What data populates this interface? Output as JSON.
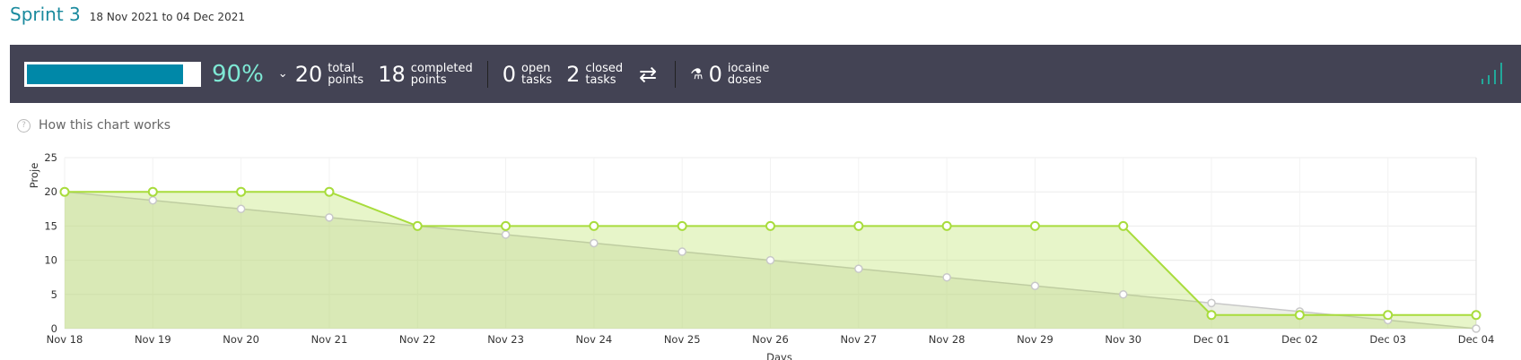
{
  "header": {
    "title": "Sprint 3",
    "dates": "18 Nov 2021 to 04 Dec 2021"
  },
  "stats": {
    "progress_fraction": 0.9,
    "percent": "90%",
    "total_points": {
      "value": "20",
      "label1": "total",
      "label2": "points"
    },
    "completed_points": {
      "value": "18",
      "label1": "completed",
      "label2": "points"
    },
    "open_tasks": {
      "value": "0",
      "label1": "open",
      "label2": "tasks"
    },
    "closed_tasks": {
      "value": "2",
      "label1": "closed",
      "label2": "tasks"
    },
    "iocaine": {
      "value": "0",
      "label1": "iocaine",
      "label2": "doses"
    }
  },
  "how_link": "How this chart works",
  "colors": {
    "accent": "#1a8a9e",
    "bar": "#434354",
    "progress": "#0088a8",
    "percent": "#7ee8d4",
    "real": "#a8dc3c",
    "ideal": "#c8c8c8"
  },
  "chart_data": {
    "type": "area",
    "ylabel": "Proje",
    "xlabel": "Days",
    "ylim": [
      0,
      25
    ],
    "yticks": [
      0,
      5,
      10,
      15,
      20,
      25
    ],
    "categories": [
      "Nov 18",
      "Nov 19",
      "Nov 20",
      "Nov 21",
      "Nov 22",
      "Nov 23",
      "Nov 24",
      "Nov 25",
      "Nov 26",
      "Nov 27",
      "Nov 28",
      "Nov 29",
      "Nov 30",
      "Dec 01",
      "Dec 02",
      "Dec 03",
      "Dec 04"
    ],
    "series": [
      {
        "values": [
          20,
          18.75,
          17.5,
          16.25,
          15,
          13.75,
          12.5,
          11.25,
          10,
          8.75,
          7.5,
          6.25,
          5,
          3.75,
          2.5,
          1.25,
          0
        ]
      },
      {
        "values": [
          20,
          20,
          20,
          20,
          15,
          15,
          15,
          15,
          15,
          15,
          15,
          15,
          15,
          2,
          2,
          2,
          2
        ]
      }
    ]
  }
}
